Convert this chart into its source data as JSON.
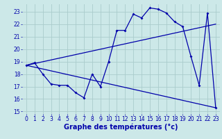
{
  "xlabel": "Graphe des températures (°c)",
  "bg_color": "#cce8e8",
  "grid_color": "#aacccc",
  "line_color": "#0000aa",
  "xlim": [
    -0.5,
    23.5
  ],
  "ylim": [
    14.8,
    23.6
  ],
  "yticks": [
    15,
    16,
    17,
    18,
    19,
    20,
    21,
    22,
    23
  ],
  "xticks": [
    0,
    1,
    2,
    3,
    4,
    5,
    6,
    7,
    8,
    9,
    10,
    11,
    12,
    13,
    14,
    15,
    16,
    17,
    18,
    19,
    20,
    21,
    22,
    23
  ],
  "main_x": [
    0,
    1,
    2,
    3,
    4,
    5,
    6,
    7,
    8,
    9,
    10,
    11,
    12,
    13,
    14,
    15,
    16,
    17,
    18,
    19,
    20,
    21,
    22,
    23
  ],
  "main_y": [
    18.7,
    18.9,
    18.0,
    17.2,
    17.1,
    17.1,
    16.5,
    16.1,
    18.0,
    17.0,
    19.0,
    21.5,
    21.5,
    22.8,
    22.5,
    23.3,
    23.2,
    22.9,
    22.2,
    21.8,
    19.4,
    17.1,
    22.9,
    15.3
  ],
  "trend1_x": [
    0,
    23
  ],
  "trend1_y": [
    18.7,
    22.0
  ],
  "trend2_x": [
    0,
    23
  ],
  "trend2_y": [
    18.7,
    15.3
  ],
  "xlabel_fontsize": 7,
  "tick_fontsize": 5.5
}
